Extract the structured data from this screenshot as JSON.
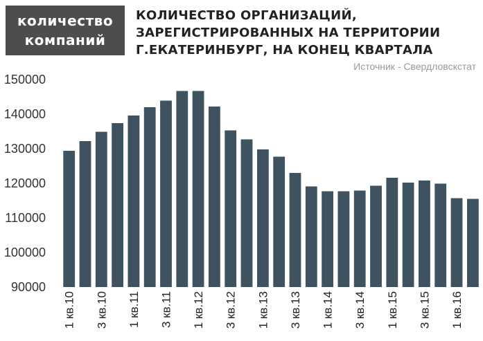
{
  "header": {
    "badge_line1": "количество",
    "badge_line2": "компаний",
    "title_lines": [
      "КОЛИЧЕСТВО ОРГАНИЗАЦИЙ,",
      "ЗАРЕГИСТРИРОВАННЫХ НА ТЕРРИТОРИИ",
      "Г.ЕКАТЕРИНБУРГ, НА КОНЕЦ КВАРТАЛА"
    ],
    "source": "Источник - Свердловскстат"
  },
  "colors": {
    "bar": "#3f525f",
    "badge": "#4d4d4d"
  },
  "chart_data": {
    "type": "bar",
    "title": "КОЛИЧЕСТВО ОРГАНИЗАЦИЙ, ЗАРЕГИСТРИРОВАННЫХ НА ТЕРРИТОРИИ Г.ЕКАТЕРИНБУРГ, НА КОНЕЦ КВАРТАЛА",
    "xlabel": "",
    "ylabel": "количество компаний",
    "ylim": [
      90000,
      150000
    ],
    "yticks": [
      90000,
      100000,
      110000,
      120000,
      130000,
      140000,
      150000
    ],
    "tick_labels": [
      "1 кв.10",
      "3 кв.10",
      "1 кв.11",
      "3 кв.11",
      "1 кв.12",
      "3 кв.12",
      "1 кв.13",
      "3 кв.13",
      "1 кв.14",
      "3 кв.14",
      "1 кв.15",
      "3 кв.15",
      "1 кв.16"
    ],
    "tick_every": 2,
    "values": [
      129400,
      132200,
      134900,
      137400,
      139600,
      142000,
      143900,
      146700,
      146700,
      142200,
      135300,
      132700,
      129800,
      127700,
      123000,
      119100,
      117700,
      117700,
      117900,
      119300,
      121600,
      120200,
      120800,
      119900,
      115700,
      115500
    ],
    "grid": false,
    "legend": "none"
  }
}
